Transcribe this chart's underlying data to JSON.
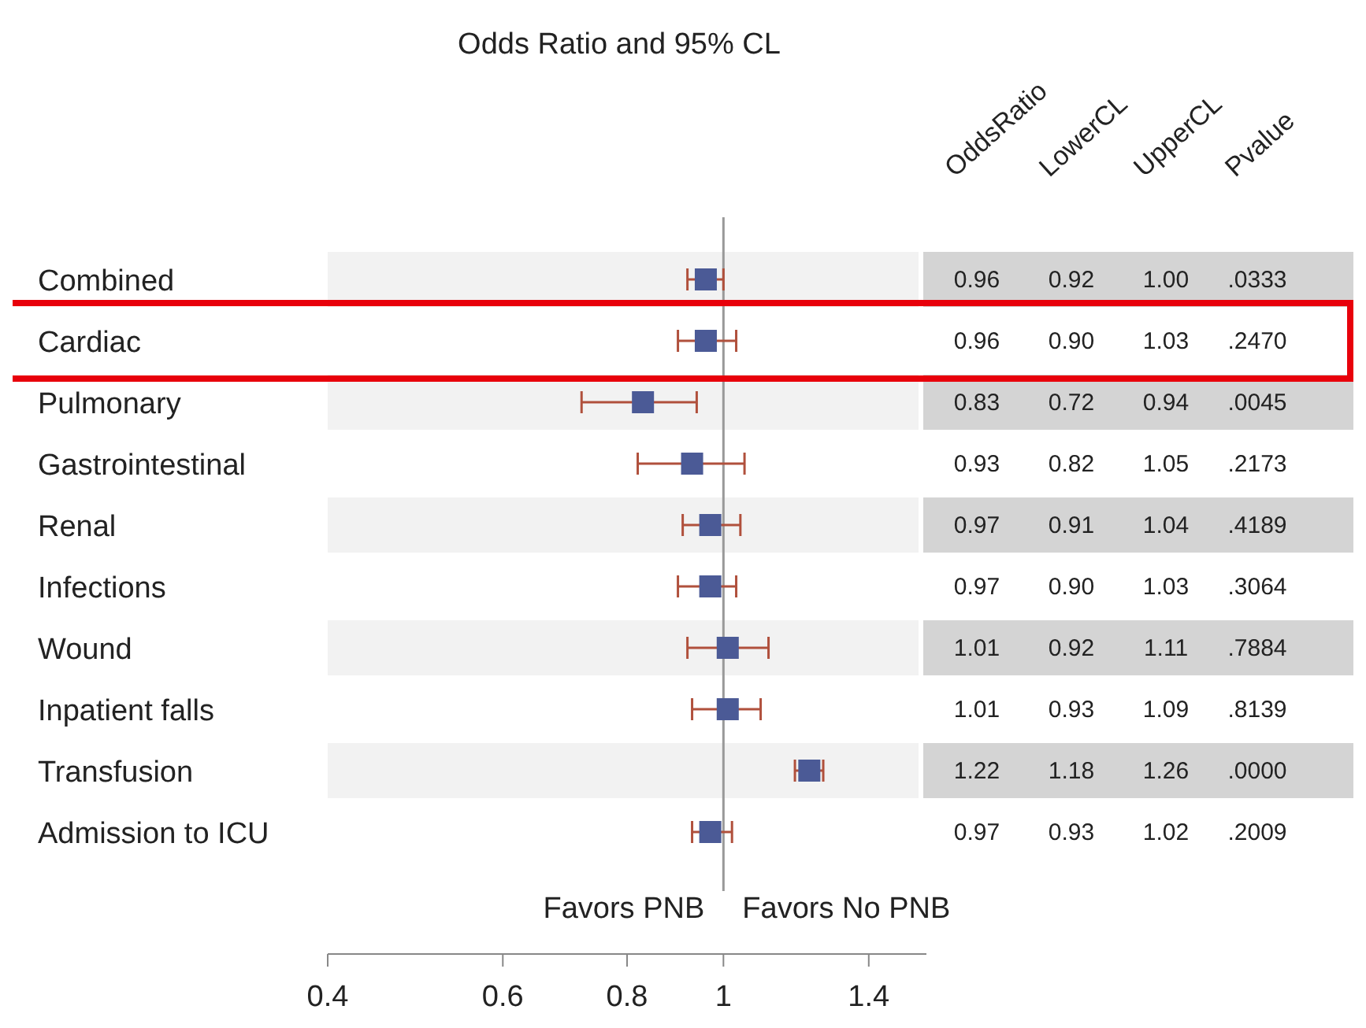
{
  "chart_data": {
    "type": "scatter",
    "title": "Odds Ratio and 95% CL",
    "categories": [
      "Combined",
      "Cardiac",
      "Pulmonary",
      "Gastrointestinal",
      "Renal",
      "Infections",
      "Wound",
      "Inpatient falls",
      "Transfusion",
      "Admission to ICU"
    ],
    "orientation": "horizontal",
    "series": [
      {
        "color": "#4b5a96",
        "values": [
          0.96,
          0.96,
          0.83,
          0.93,
          0.97,
          0.97,
          1.01,
          1.01,
          1.22,
          0.97
        ],
        "errors": [
          [
            0.92,
            1.0
          ],
          [
            0.9,
            1.03
          ],
          [
            0.72,
            0.94
          ],
          [
            0.82,
            1.05
          ],
          [
            0.91,
            1.04
          ],
          [
            0.9,
            1.03
          ],
          [
            0.92,
            1.11
          ],
          [
            0.93,
            1.09
          ],
          [
            1.18,
            1.26
          ],
          [
            0.93,
            1.02
          ]
        ]
      }
    ],
    "marker": "square",
    "log": "x",
    "xlim": [
      0.4,
      1.6
    ],
    "xticks": [
      0.4,
      0.6,
      0.8,
      1,
      1.4
    ],
    "ref_lines": [
      {
        "axis": "x",
        "value": 1,
        "color": "#999999"
      }
    ],
    "bands": [
      {
        "axis": "y",
        "from": "Combined",
        "to": "Combined",
        "color": "#f2f2f2"
      },
      {
        "axis": "y",
        "from": "Pulmonary",
        "to": "Pulmonary",
        "color": "#f2f2f2"
      },
      {
        "axis": "y",
        "from": "Renal",
        "to": "Renal",
        "color": "#f2f2f2"
      },
      {
        "axis": "y",
        "from": "Wound",
        "to": "Wound",
        "color": "#f2f2f2"
      },
      {
        "axis": "y",
        "from": "Transfusion",
        "to": "Transfusion",
        "color": "#f2f2f2"
      }
    ],
    "data_labels": true,
    "annotations": [
      "Favors PNB",
      "Favors No PNB",
      "OddsRatio",
      "LowerCL",
      "UpperCL",
      "Pvalue",
      ".0333",
      ".2470",
      ".0045",
      ".2173",
      ".4189",
      ".3064",
      ".7884",
      ".8139",
      ".0000",
      ".2009",
      "0.92",
      "0.90",
      "0.72",
      "0.82",
      "0.91",
      "0.90",
      "0.92",
      "0.93",
      "1.18",
      "0.93",
      "1.00",
      "1.03",
      "0.94",
      "1.05",
      "1.04",
      "1.03",
      "1.11",
      "1.09",
      "1.26",
      "1.02"
    ]
  }
}
